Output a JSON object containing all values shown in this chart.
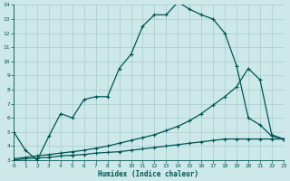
{
  "xlabel": "Humidex (Indice chaleur)",
  "bg_color": "#cce8e8",
  "line_color": "#005555",
  "grid_color": "#aacccc",
  "xlim": [
    0,
    23
  ],
  "ylim": [
    3,
    14
  ],
  "xtick_labels": [
    "0",
    "1",
    "2",
    "3",
    "4",
    "5",
    "6",
    "7",
    "8",
    "9",
    "10",
    "11",
    "12",
    "13",
    "14",
    "15",
    "16",
    "17",
    "18",
    "19",
    "20",
    "21",
    "22",
    "23"
  ],
  "xticks": [
    0,
    1,
    2,
    3,
    4,
    5,
    6,
    7,
    8,
    9,
    10,
    11,
    12,
    13,
    14,
    15,
    16,
    17,
    18,
    19,
    20,
    21,
    22,
    23
  ],
  "yticks": [
    3,
    4,
    5,
    6,
    7,
    8,
    9,
    10,
    11,
    12,
    13,
    14
  ],
  "s1_x": [
    0,
    1,
    2,
    3,
    4,
    5,
    6,
    7,
    8,
    9,
    10,
    11,
    12,
    13,
    14,
    15,
    16,
    17,
    18,
    19,
    20,
    21,
    22,
    23
  ],
  "s1_y": [
    5.0,
    3.7,
    3.0,
    4.7,
    6.3,
    6.0,
    7.3,
    7.5,
    7.5,
    9.5,
    10.5,
    12.5,
    13.3,
    13.3,
    14.2,
    13.7,
    13.3,
    13.0,
    12.0,
    9.7,
    6.0,
    5.5,
    4.7,
    4.5
  ],
  "s2_x": [
    0,
    1,
    2,
    3,
    4,
    5,
    6,
    7,
    8,
    9,
    10,
    11,
    12,
    13,
    14,
    15,
    16,
    17,
    18,
    19,
    20,
    21,
    22,
    23
  ],
  "s2_y": [
    3.1,
    3.2,
    3.3,
    3.4,
    3.5,
    3.6,
    3.7,
    3.85,
    4.0,
    4.2,
    4.4,
    4.6,
    4.8,
    5.1,
    5.4,
    5.8,
    6.3,
    6.9,
    7.5,
    8.2,
    9.5,
    8.7,
    4.8,
    4.5
  ],
  "s3_x": [
    0,
    1,
    2,
    3,
    4,
    5,
    6,
    7,
    8,
    9,
    10,
    11,
    12,
    13,
    14,
    15,
    16,
    17,
    18,
    19,
    20,
    21,
    22,
    23
  ],
  "s3_y": [
    3.0,
    3.1,
    3.15,
    3.2,
    3.3,
    3.35,
    3.4,
    3.5,
    3.55,
    3.6,
    3.7,
    3.8,
    3.9,
    4.0,
    4.1,
    4.2,
    4.3,
    4.4,
    4.5,
    4.5,
    4.5,
    4.5,
    4.5,
    4.5
  ]
}
